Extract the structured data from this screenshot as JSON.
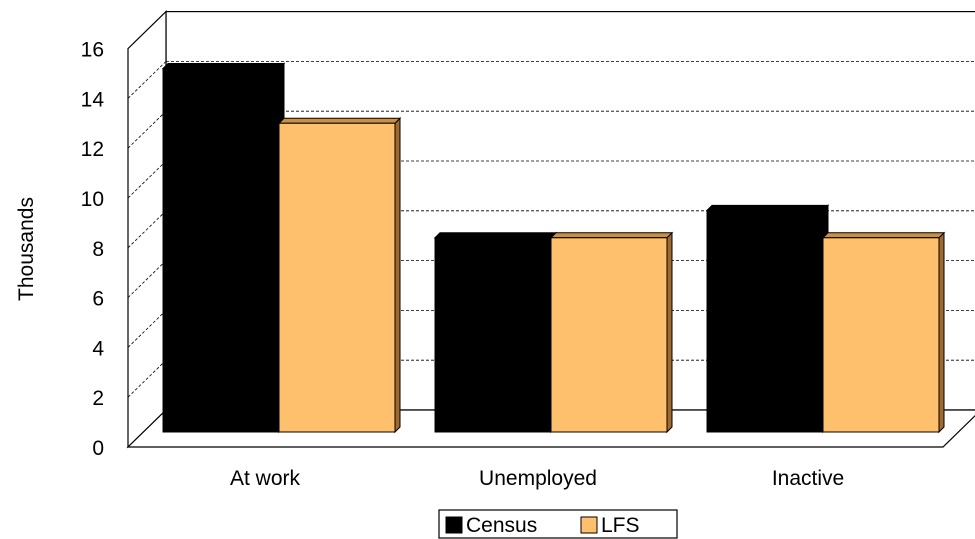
{
  "chart_data": {
    "type": "bar",
    "title": "",
    "xlabel": "",
    "ylabel": "Thousands",
    "ylim": [
      0,
      16
    ],
    "yticks": [
      0,
      2,
      4,
      6,
      8,
      10,
      12,
      14,
      16
    ],
    "categories": [
      "At work",
      "Unemployed",
      "Inactive"
    ],
    "series": [
      {
        "name": "Census",
        "values": [
          14.6,
          7.8,
          8.9
        ]
      },
      {
        "name": "LFS",
        "values": [
          12.4,
          7.8,
          7.8
        ]
      }
    ],
    "colors": {
      "Census": "#000000",
      "LFS": "#FFC06D"
    },
    "grid": true,
    "gridline_style": "dashed",
    "legend_position": "bottom",
    "projection": "3d"
  }
}
